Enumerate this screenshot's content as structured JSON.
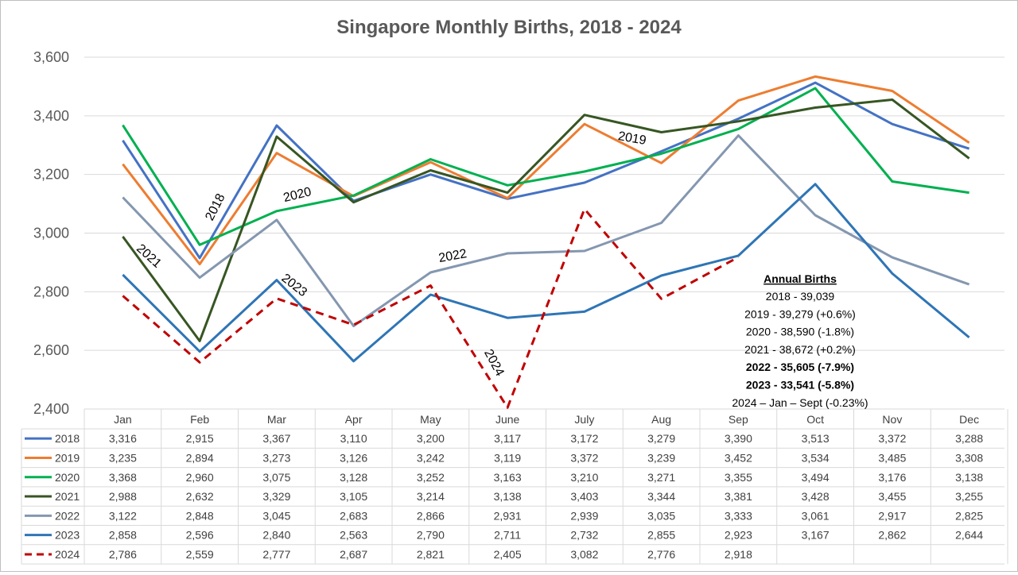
{
  "chart_data": {
    "type": "line",
    "title": "Singapore Monthly Births, 2018 - 2024",
    "categories": [
      "Jan",
      "Feb",
      "Mar",
      "Apr",
      "May",
      "June",
      "July",
      "Aug",
      "Sep",
      "Oct",
      "Nov",
      "Dec"
    ],
    "ylim": [
      2400,
      3600
    ],
    "yticks": [
      "2,400",
      "2,600",
      "2,800",
      "3,000",
      "3,200",
      "3,400",
      "3,600"
    ],
    "ytick_values": [
      2400,
      2600,
      2800,
      3000,
      3200,
      3400,
      3600
    ],
    "grid": true,
    "series": [
      {
        "name": "2018",
        "color": "#4472C4",
        "dashed": false,
        "values": [
          3316,
          2915,
          3367,
          3110,
          3200,
          3117,
          3172,
          3279,
          3390,
          3513,
          3372,
          3288
        ],
        "labels": [
          "3,316",
          "2,915",
          "3,367",
          "3,110",
          "3,200",
          "3,117",
          "3,172",
          "3,279",
          "3,390",
          "3,513",
          "3,372",
          "3,288"
        ]
      },
      {
        "name": "2019",
        "color": "#ED7D31",
        "dashed": false,
        "values": [
          3235,
          2894,
          3273,
          3126,
          3242,
          3119,
          3372,
          3239,
          3452,
          3534,
          3485,
          3308
        ],
        "labels": [
          "3,235",
          "2,894",
          "3,273",
          "3,126",
          "3,242",
          "3,119",
          "3,372",
          "3,239",
          "3,452",
          "3,534",
          "3,485",
          "3,308"
        ]
      },
      {
        "name": "2020",
        "color": "#00B050",
        "dashed": false,
        "values": [
          3368,
          2960,
          3075,
          3128,
          3252,
          3163,
          3210,
          3271,
          3355,
          3494,
          3176,
          3138
        ],
        "labels": [
          "3,368",
          "2,960",
          "3,075",
          "3,128",
          "3,252",
          "3,163",
          "3,210",
          "3,271",
          "3,355",
          "3,494",
          "3,176",
          "3,138"
        ]
      },
      {
        "name": "2021",
        "color": "#375623",
        "dashed": false,
        "values": [
          2988,
          2632,
          3329,
          3105,
          3214,
          3138,
          3403,
          3344,
          3381,
          3428,
          3455,
          3255
        ],
        "labels": [
          "2,988",
          "2,632",
          "3,329",
          "3,105",
          "3,214",
          "3,138",
          "3,403",
          "3,344",
          "3,381",
          "3,428",
          "3,455",
          "3,255"
        ]
      },
      {
        "name": "2022",
        "color": "#8497B0",
        "dashed": false,
        "values": [
          3122,
          2848,
          3045,
          2683,
          2866,
          2931,
          2939,
          3035,
          3333,
          3061,
          2917,
          2825
        ],
        "labels": [
          "3,122",
          "2,848",
          "3,045",
          "2,683",
          "2,866",
          "2,931",
          "2,939",
          "3,035",
          "3,333",
          "3,061",
          "2,917",
          "2,825"
        ]
      },
      {
        "name": "2023",
        "color": "#2E75B6",
        "dashed": false,
        "values": [
          2858,
          2596,
          2840,
          2563,
          2790,
          2711,
          2732,
          2855,
          2923,
          3167,
          2862,
          2644
        ],
        "labels": [
          "2,858",
          "2,596",
          "2,840",
          "2,563",
          "2,790",
          "2,711",
          "2,732",
          "2,855",
          "2,923",
          "3,167",
          "2,862",
          "2,644"
        ]
      },
      {
        "name": "2024",
        "color": "#C00000",
        "dashed": true,
        "values": [
          2786,
          2559,
          2777,
          2687,
          2821,
          2405,
          3082,
          2776,
          2918,
          null,
          null,
          null
        ],
        "labels": [
          "2,786",
          "2,559",
          "2,777",
          "2,687",
          "2,821",
          "2,405",
          "3,082",
          "2,776",
          "2,918",
          "",
          "",
          ""
        ]
      }
    ],
    "line_labels": [
      {
        "text": "2018"
      },
      {
        "text": "2019"
      },
      {
        "text": "2020"
      },
      {
        "text": "2021"
      },
      {
        "text": "2022"
      },
      {
        "text": "2023"
      },
      {
        "text": "2024"
      }
    ],
    "annotation": {
      "heading": "Annual Births",
      "lines": [
        {
          "text": "2018 - 39,039",
          "bold": false
        },
        {
          "text": "2019 - 39,279 (+0.6%)",
          "bold": false
        },
        {
          "text": "2020 - 38,590 (-1.8%)",
          "bold": false
        },
        {
          "text": "2021 - 38,672 (+0.2%)",
          "bold": false
        },
        {
          "text": "2022 - 35,605 (-7.9%)",
          "bold": true
        },
        {
          "text": "2023 - 33,541 (-5.8%)",
          "bold": true
        },
        {
          "text": "2024 – Jan – Sept (-0.23%)",
          "bold": false
        }
      ]
    }
  }
}
